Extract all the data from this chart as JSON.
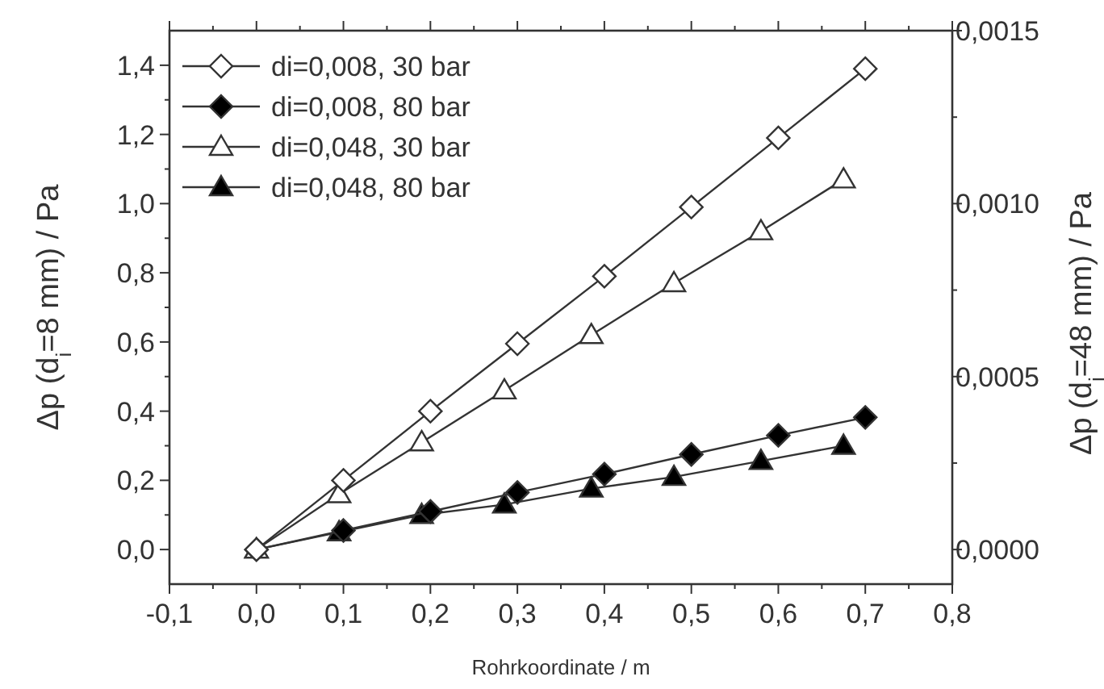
{
  "chart_data": {
    "type": "line",
    "xlabel": "Rohrkoordinate / m",
    "ylabel": "Δp (d$_{i}$=8 mm) / Pa",
    "y2label": "Δp (d$_{i}$=48 mm) / Pa",
    "xlim": [
      -0.1,
      0.8
    ],
    "xticks": [
      {
        "value": -0.1,
        "label": "-0,1"
      },
      {
        "value": -0.05,
        "label": null
      },
      {
        "value": 0,
        "label": "0,0"
      },
      {
        "value": 0.05,
        "label": null
      },
      {
        "value": 0.1,
        "label": "0,1"
      },
      {
        "value": 0.15,
        "label": null
      },
      {
        "value": 0.2,
        "label": "0,2"
      },
      {
        "value": 0.25,
        "label": null
      },
      {
        "value": 0.3,
        "label": "0,3"
      },
      {
        "value": 0.35,
        "label": null
      },
      {
        "value": 0.4,
        "label": "0,4"
      },
      {
        "value": 0.45,
        "label": null
      },
      {
        "value": 0.5,
        "label": "0,5"
      },
      {
        "value": 0.55,
        "label": null
      },
      {
        "value": 0.6,
        "label": "0,6"
      },
      {
        "value": 0.65,
        "label": null
      },
      {
        "value": 0.7,
        "label": "0,7"
      },
      {
        "value": 0.75,
        "label": null
      },
      {
        "value": 0.8,
        "label": "0,8"
      }
    ],
    "ylim": [
      -0.1,
      1.5
    ],
    "yticks": [
      {
        "value": 0,
        "label": "0,0"
      },
      {
        "value": 0.1,
        "label": null
      },
      {
        "value": 0.2,
        "label": "0,2"
      },
      {
        "value": 0.3,
        "label": null
      },
      {
        "value": 0.4,
        "label": "0,4"
      },
      {
        "value": 0.5,
        "label": null
      },
      {
        "value": 0.6,
        "label": "0,6"
      },
      {
        "value": 0.7,
        "label": null
      },
      {
        "value": 0.8,
        "label": "0,8"
      },
      {
        "value": 0.9,
        "label": null
      },
      {
        "value": 1.0,
        "label": "1,0"
      },
      {
        "value": 1.1,
        "label": null
      },
      {
        "value": 1.2,
        "label": "1,2"
      },
      {
        "value": 1.3,
        "label": null
      },
      {
        "value": 1.4,
        "label": "1,4"
      }
    ],
    "y2lim": [
      -0.0001,
      0.0015
    ],
    "y2ticks": [
      {
        "value": 0,
        "label": "0,0000"
      },
      {
        "value": 0.00025,
        "label": null
      },
      {
        "value": 0.0005,
        "label": "0,0005"
      },
      {
        "value": 0.00075,
        "label": null
      },
      {
        "value": 0.001,
        "label": "0,0010"
      },
      {
        "value": 0.00125,
        "label": null
      },
      {
        "value": 0.0015,
        "label": "0,0015"
      }
    ],
    "grid": false,
    "legend": "top left",
    "line_style": "solid",
    "series": [
      {
        "name": "di=0,008, 30 bar",
        "color": "#ffffff",
        "marker": "diamond",
        "x": [
          0,
          0.1,
          0.2,
          0.3,
          0.4,
          0.5,
          0.6,
          0.7
        ],
        "values": [
          0,
          0.2,
          0.4,
          0.595,
          0.79,
          0.99,
          1.19,
          1.39
        ]
      },
      {
        "name": "di=0,008, 80 bar",
        "color": "#000000",
        "marker": "diamond",
        "x": [
          0,
          0.1,
          0.2,
          0.3,
          0.4,
          0.5,
          0.6,
          0.7
        ],
        "values": [
          0,
          0.055,
          0.11,
          0.165,
          0.218,
          0.275,
          0.33,
          0.382
        ]
      },
      {
        "name": "di=0,048, 30 bar",
        "color": "#ffffff",
        "marker": "triangle",
        "axis": "y2",
        "x": [
          0,
          0.095,
          0.19,
          0.285,
          0.385,
          0.48,
          0.58,
          0.675
        ],
        "values": [
          0,
          0.00016,
          0.00031,
          0.00046,
          0.00062,
          0.00077,
          0.00092,
          0.00107
        ]
      },
      {
        "name": "di=0,048, 80 bar",
        "color": "#000000",
        "marker": "triangle",
        "axis": "y2",
        "x": [
          0,
          0.095,
          0.19,
          0.285,
          0.385,
          0.48,
          0.58,
          0.675
        ],
        "values": [
          0,
          5e-05,
          0.0001,
          0.00013,
          0.000176,
          0.00021,
          0.000256,
          0.0003
        ]
      }
    ]
  }
}
